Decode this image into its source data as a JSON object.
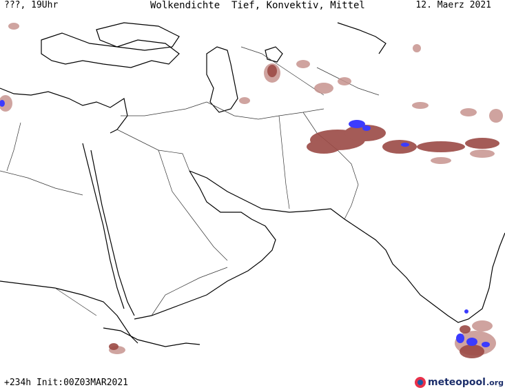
{
  "header": {
    "left": "???, 19Uhr",
    "center": "Wolkendichte  Tief, Konvektiv, Mittel",
    "right": "12. Maerz 2021"
  },
  "footer": {
    "left": "+234h Init:00Z03MAR2021",
    "logo_main": "meteopool",
    "logo_suffix": ".org"
  },
  "colors": {
    "cloud_low": "#c7948f",
    "cloud_mid": "#9b4a45",
    "cloud_high": "#3b3bff",
    "coast": "#000000",
    "border": "#333333"
  }
}
